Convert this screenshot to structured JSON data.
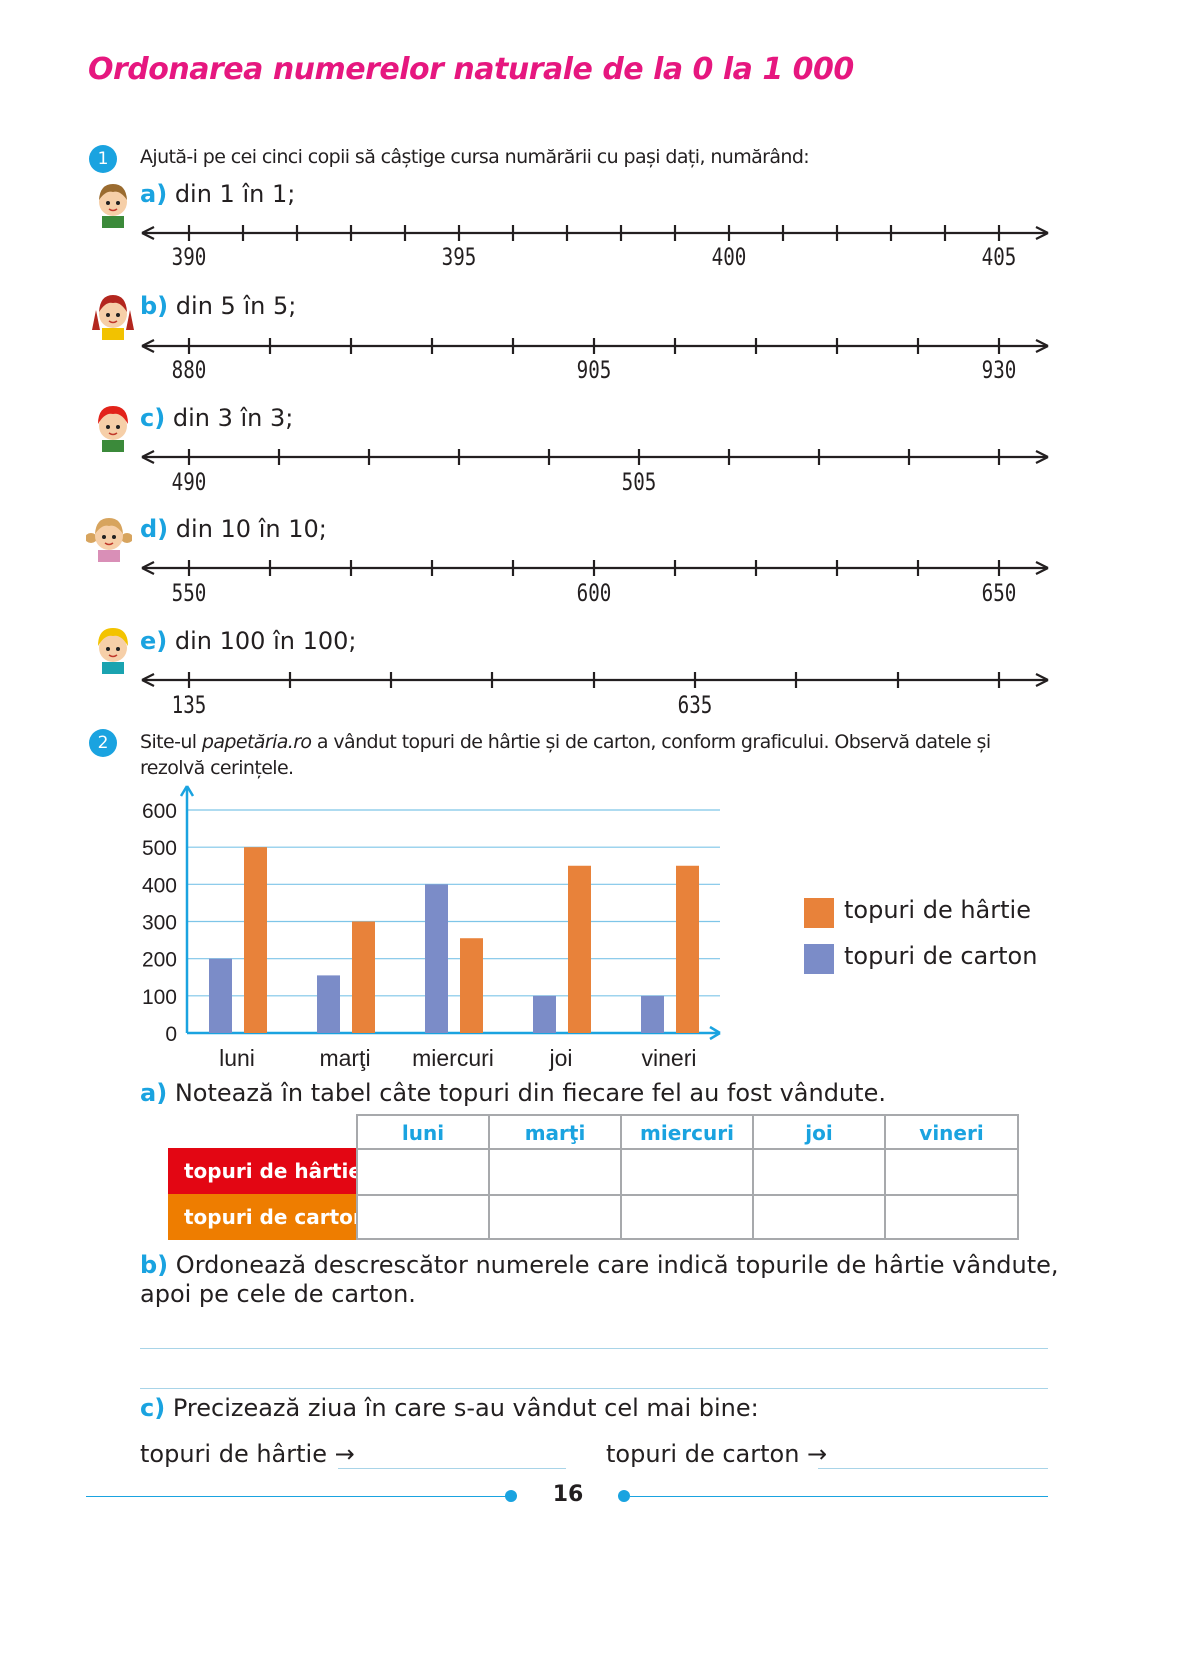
{
  "title": "Ordonarea numerelor naturale de la 0 la 1 000",
  "ex1": {
    "number": "1",
    "instruction": "Ajută-i pe cei cinci copii să câștige cursa numărării cu pași dați, numărând:",
    "lines": [
      {
        "letter": "a)",
        "text": "din 1 în 1;",
        "labels": [
          "390",
          "395",
          "400",
          "405"
        ]
      },
      {
        "letter": "b)",
        "text": "din 5 în 5;",
        "labels": [
          "880",
          "905",
          "930"
        ]
      },
      {
        "letter": "c)",
        "text": "din 3 în 3;",
        "labels": [
          "490",
          "505"
        ]
      },
      {
        "letter": "d)",
        "text": "din 10 în 10;",
        "labels": [
          "550",
          "600",
          "650"
        ]
      },
      {
        "letter": "e)",
        "text": "din 100 în 100;",
        "labels": [
          "135",
          "635"
        ]
      }
    ]
  },
  "ex2": {
    "number": "2",
    "intro_a": "Site-ul ",
    "intro_site": "papetăria.ro",
    "intro_b": " a vândut topuri de hârtie și de carton, conform graficului. Observă datele și",
    "intro_c": "rezolvă cerințele.",
    "task_a_letter": "a)",
    "task_a": "Notează în tabel câte topuri din fiecare fel au fost vândute.",
    "task_b_letter": "b)",
    "task_b1": "Ordonează descrescător numerele care indică topurile de hârtie vândute,",
    "task_b2": "apoi pe cele de carton.",
    "task_c_letter": "c)",
    "task_c": "Precizează ziua în care s-au vândut cel mai bine:",
    "answer_paper": "topuri de hârtie →",
    "answer_carton": "topuri de carton →",
    "table": {
      "headers": [
        "luni",
        "marţi",
        "miercuri",
        "joi",
        "vineri"
      ],
      "row_paper": "topuri de hârtie",
      "row_carton": "topuri de carton"
    }
  },
  "chart_data": {
    "type": "bar",
    "categories": [
      "luni",
      "marţi",
      "miercuri",
      "joi",
      "vineri"
    ],
    "series": [
      {
        "name": "topuri de carton",
        "color": "#7b8cc8",
        "values": [
          200,
          155,
          400,
          100,
          100
        ]
      },
      {
        "name": "topuri de hârtie",
        "color": "#e8823a",
        "values": [
          500,
          300,
          255,
          450,
          450
        ]
      }
    ],
    "yticks": [
      "0",
      "100",
      "200",
      "300",
      "400",
      "500",
      "600"
    ],
    "ylim": [
      0,
      600
    ],
    "grid": true,
    "legend_position": "right"
  },
  "colors": {
    "title": "#e6177f",
    "accent": "#1aa3e0",
    "row_paper_bg": "#e30613",
    "row_carton_bg": "#ee7d00"
  },
  "page_number": "16"
}
